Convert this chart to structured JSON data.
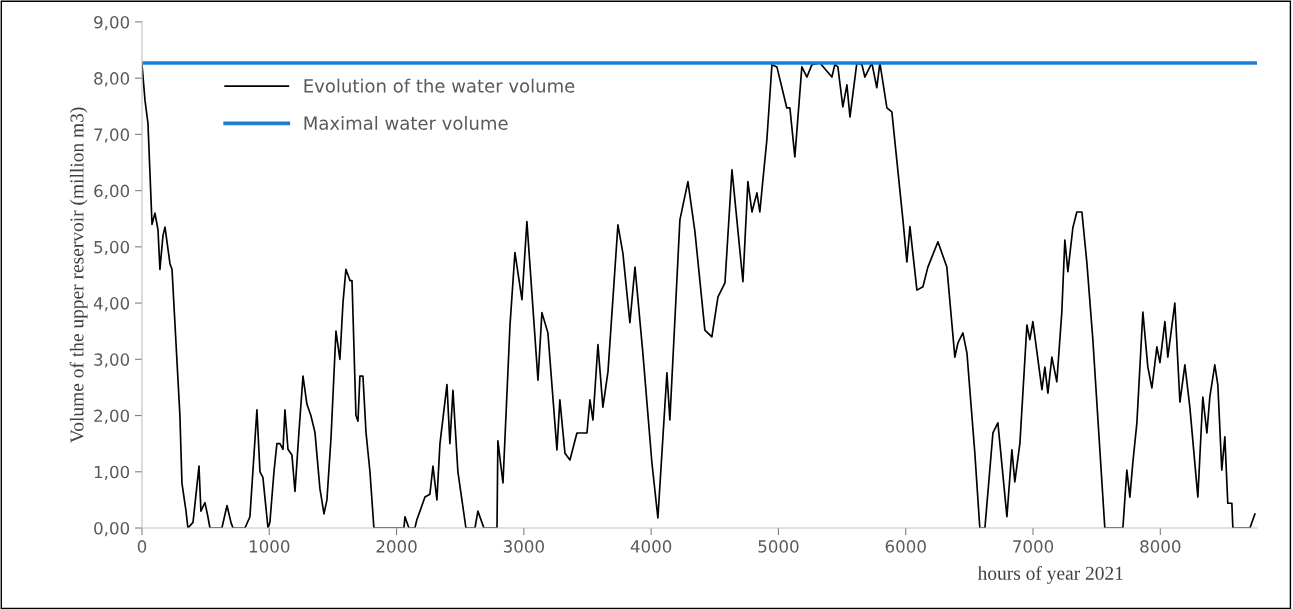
{
  "chart_data": {
    "type": "line",
    "xlabel": "hours of year 2021",
    "ylabel": "Volume of the upper reservoir (million m3)",
    "xlim": [
      0,
      8760
    ],
    "xticks": [
      0,
      1000,
      2000,
      3000,
      4000,
      5000,
      6000,
      7000,
      8000
    ],
    "ylim": [
      0,
      9
    ],
    "yticks": [
      {
        "value": 0,
        "label": "0,00"
      },
      {
        "value": 1,
        "label": "1,00"
      },
      {
        "value": 2,
        "label": "2,00"
      },
      {
        "value": 3,
        "label": "3,00"
      },
      {
        "value": 4,
        "label": "4,00"
      },
      {
        "value": 5,
        "label": "5,00"
      },
      {
        "value": 6,
        "label": "6,00"
      },
      {
        "value": 7,
        "label": "7,00"
      },
      {
        "value": 8,
        "label": "8,00"
      },
      {
        "value": 9,
        "label": "9,00"
      }
    ],
    "grid": false,
    "legend": "top left",
    "marker": "none",
    "line_style": "solid",
    "series": [
      {
        "name": "Evolution of the water volume",
        "color": "#000000",
        "x": [
          0,
          24,
          47,
          79,
          102,
          126,
          141,
          165,
          181,
          220,
          236,
          298,
          314,
          346,
          361,
          401,
          448,
          463,
          495,
          518,
          534,
          628,
          668,
          699,
          715,
          809,
          848,
          903,
          927,
          950,
          990,
          1005,
          1037,
          1060,
          1084,
          1108,
          1123,
          1147,
          1178,
          1202,
          1233,
          1265,
          1296,
          1327,
          1359,
          1398,
          1430,
          1453,
          1485,
          1524,
          1555,
          1579,
          1602,
          1634,
          1650,
          1681,
          1697,
          1712,
          1736,
          1760,
          1791,
          1822,
          2058,
          2066,
          2097,
          2144,
          2160,
          2184,
          2223,
          2262,
          2286,
          2317,
          2341,
          2396,
          2419,
          2443,
          2482,
          2545,
          2616,
          2639,
          2686,
          2789,
          2796,
          2836,
          2891,
          2930,
          2985,
          3024,
          3111,
          3142,
          3189,
          3260,
          3283,
          3323,
          3362,
          3417,
          3496,
          3519,
          3543,
          3582,
          3621,
          3661,
          3739,
          3778,
          3833,
          3873,
          3935,
          4006,
          4053,
          4124,
          4147,
          4226,
          4289,
          4344,
          4422,
          4477,
          4525,
          4580,
          4635,
          4721,
          4760,
          4792,
          4831,
          4854,
          4878,
          4909,
          4949,
          4988,
          5066,
          5090,
          5129,
          5184,
          5224,
          5263,
          5326,
          5420,
          5443,
          5467,
          5506,
          5538,
          5562,
          5616,
          5656,
          5679,
          5734,
          5773,
          5797,
          5852,
          5891,
          5978,
          6009,
          6033,
          6088,
          6135,
          6174,
          6253,
          6323,
          6386,
          6410,
          6449,
          6481,
          6543,
          6582,
          6622,
          6685,
          6724,
          6795,
          6834,
          6857,
          6897,
          6952,
          6975,
          6999,
          7070,
          7093,
          7117,
          7148,
          7187,
          7226,
          7250,
          7274,
          7313,
          7344,
          7384,
          7423,
          7470,
          7564,
          7706,
          7737,
          7761,
          7784,
          7816,
          7863,
          7902,
          7934,
          7973,
          7997,
          8036,
          8059,
          8114,
          8154,
          8193,
          8232,
          8295,
          8334,
          8366,
          8389,
          8428,
          8452,
          8483,
          8507,
          8530,
          8562,
          8570,
          8704,
          8743
        ],
        "values": [
          8.25,
          7.6,
          7.2,
          5.4,
          5.6,
          5.3,
          4.6,
          5.2,
          5.35,
          4.7,
          4.6,
          2.0,
          0.8,
          0.3,
          0.0,
          0.1,
          1.1,
          0.3,
          0.45,
          0.2,
          0.0,
          0.0,
          0.4,
          0.1,
          0.0,
          0.0,
          0.2,
          2.1,
          1.0,
          0.9,
          0.0,
          0.1,
          1.0,
          1.5,
          1.5,
          1.4,
          2.1,
          1.4,
          1.3,
          0.65,
          1.7,
          2.7,
          2.2,
          2.0,
          1.7,
          0.7,
          0.25,
          0.5,
          1.6,
          3.5,
          3.0,
          4.0,
          4.6,
          4.4,
          4.4,
          2.0,
          1.9,
          2.7,
          2.7,
          1.7,
          1.0,
          0.0,
          0.0,
          0.2,
          0.0,
          0.0,
          0.15,
          0.3,
          0.55,
          0.6,
          1.1,
          0.5,
          1.5,
          2.55,
          1.5,
          2.45,
          1.0,
          0.0,
          0.0,
          0.3,
          0.0,
          0.0,
          1.55,
          0.8,
          3.6,
          4.9,
          4.06,
          5.45,
          2.63,
          3.83,
          3.47,
          1.39,
          2.28,
          1.33,
          1.21,
          1.69,
          1.69,
          2.28,
          1.92,
          3.26,
          2.15,
          2.78,
          5.39,
          4.89,
          3.65,
          4.64,
          3.11,
          1.16,
          0.18,
          2.76,
          1.92,
          5.48,
          6.16,
          5.27,
          3.52,
          3.4,
          4.11,
          4.36,
          6.37,
          4.38,
          6.16,
          5.62,
          5.96,
          5.62,
          6.19,
          6.9,
          8.24,
          8.2,
          7.47,
          7.47,
          6.6,
          8.2,
          8.02,
          8.24,
          8.27,
          8.02,
          8.24,
          8.2,
          7.49,
          7.88,
          7.31,
          8.27,
          8.24,
          8.02,
          8.27,
          7.83,
          8.27,
          7.47,
          7.4,
          5.48,
          4.73,
          5.36,
          4.23,
          4.29,
          4.64,
          5.09,
          4.64,
          3.04,
          3.29,
          3.47,
          3.11,
          1.33,
          0.0,
          0.0,
          1.69,
          1.87,
          0.2,
          1.39,
          0.82,
          1.51,
          3.61,
          3.35,
          3.67,
          2.46,
          2.86,
          2.4,
          3.04,
          2.6,
          3.83,
          5.12,
          4.56,
          5.34,
          5.62,
          5.62,
          4.72,
          3.35,
          0.0,
          0.0,
          1.03,
          0.55,
          1.16,
          1.87,
          3.84,
          2.86,
          2.49,
          3.22,
          2.94,
          3.67,
          3.04,
          4.0,
          2.24,
          2.9,
          2.15,
          0.55,
          2.33,
          1.69,
          2.33,
          2.9,
          2.54,
          1.03,
          1.62,
          0.44,
          0.44,
          0.0,
          0.0,
          0.25
        ]
      },
      {
        "name": "Maximal water volume",
        "color": "#1a7fd4",
        "x": [
          0,
          8760
        ],
        "values": [
          8.27,
          8.27
        ]
      }
    ]
  }
}
